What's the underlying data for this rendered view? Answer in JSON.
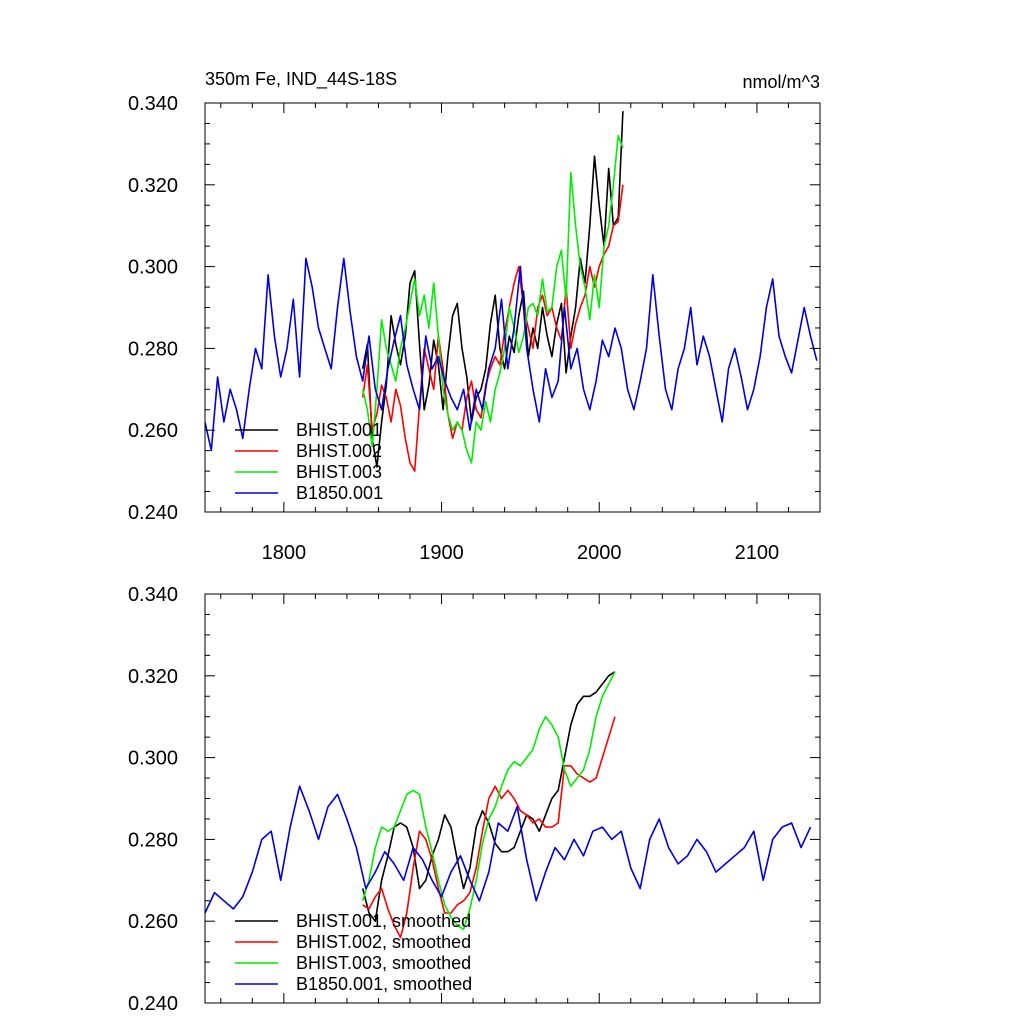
{
  "colors": {
    "BHIST.001": "#000000",
    "BHIST.002": "#ff0000",
    "BHIST.003": "#00ee00",
    "B1850.001": "#0000dd"
  },
  "chart_data": [
    {
      "type": "line",
      "title": "350m Fe, IND_44S-18S",
      "units": "nmol/m^3",
      "xlabel": "",
      "ylabel": "",
      "xlim": [
        1750,
        2140
      ],
      "ylim": [
        0.24,
        0.34
      ],
      "xticks": [
        1800,
        1900,
        2000,
        2100
      ],
      "xtick_labels": [
        "1800",
        "1900",
        "2000",
        "2100"
      ],
      "yticks": [
        0.24,
        0.26,
        0.28,
        0.3,
        0.32,
        0.34
      ],
      "ytick_labels": [
        "0.240",
        "0.260",
        "0.280",
        "0.300",
        "0.320",
        "0.340"
      ],
      "legend_position": "bottom-left",
      "series": [
        {
          "name": "BHIST.001",
          "color": "#000000",
          "x": [
            1850,
            1853,
            1856,
            1859,
            1862,
            1865,
            1868,
            1871,
            1874,
            1877,
            1880,
            1883,
            1886,
            1889,
            1892,
            1895,
            1898,
            1901,
            1904,
            1907,
            1910,
            1913,
            1916,
            1919,
            1922,
            1925,
            1928,
            1931,
            1934,
            1937,
            1940,
            1943,
            1946,
            1949,
            1952,
            1955,
            1958,
            1961,
            1964,
            1967,
            1970,
            1973,
            1976,
            1979,
            1982,
            1985,
            1988,
            1991,
            1994,
            1997,
            2000,
            2003,
            2006,
            2009,
            2012,
            2015
          ],
          "y": [
            0.275,
            0.281,
            0.258,
            0.251,
            0.262,
            0.271,
            0.288,
            0.281,
            0.276,
            0.283,
            0.296,
            0.299,
            0.281,
            0.265,
            0.271,
            0.282,
            0.276,
            0.265,
            0.278,
            0.288,
            0.291,
            0.28,
            0.273,
            0.262,
            0.268,
            0.27,
            0.275,
            0.286,
            0.293,
            0.28,
            0.275,
            0.283,
            0.279,
            0.288,
            0.294,
            0.278,
            0.285,
            0.28,
            0.29,
            0.283,
            0.278,
            0.286,
            0.291,
            0.274,
            0.283,
            0.29,
            0.302,
            0.296,
            0.31,
            0.327,
            0.315,
            0.305,
            0.324,
            0.31,
            0.312,
            0.338
          ]
        },
        {
          "name": "BHIST.002",
          "color": "#ff0000",
          "x": [
            1850,
            1853,
            1856,
            1859,
            1862,
            1865,
            1868,
            1871,
            1874,
            1877,
            1880,
            1883,
            1886,
            1889,
            1892,
            1895,
            1898,
            1901,
            1904,
            1907,
            1910,
            1913,
            1916,
            1919,
            1922,
            1925,
            1928,
            1931,
            1934,
            1937,
            1940,
            1943,
            1946,
            1949,
            1952,
            1955,
            1958,
            1961,
            1964,
            1967,
            1970,
            1973,
            1976,
            1979,
            1982,
            1985,
            1988,
            1991,
            1994,
            1997,
            2000,
            2003,
            2006,
            2009,
            2012,
            2015
          ],
          "y": [
            0.268,
            0.276,
            0.26,
            0.264,
            0.271,
            0.268,
            0.262,
            0.27,
            0.266,
            0.258,
            0.252,
            0.25,
            0.266,
            0.28,
            0.275,
            0.27,
            0.283,
            0.275,
            0.264,
            0.258,
            0.262,
            0.26,
            0.268,
            0.272,
            0.265,
            0.263,
            0.271,
            0.275,
            0.278,
            0.276,
            0.284,
            0.29,
            0.296,
            0.3,
            0.29,
            0.285,
            0.28,
            0.29,
            0.293,
            0.288,
            0.29,
            0.285,
            0.282,
            0.295,
            0.28,
            0.286,
            0.29,
            0.293,
            0.3,
            0.295,
            0.3,
            0.303,
            0.305,
            0.31,
            0.311,
            0.32
          ]
        },
        {
          "name": "BHIST.003",
          "color": "#00ee00",
          "x": [
            1850,
            1853,
            1856,
            1859,
            1862,
            1865,
            1868,
            1871,
            1874,
            1877,
            1880,
            1883,
            1886,
            1889,
            1892,
            1895,
            1898,
            1901,
            1904,
            1907,
            1910,
            1913,
            1916,
            1919,
            1922,
            1925,
            1928,
            1931,
            1934,
            1937,
            1940,
            1943,
            1946,
            1949,
            1952,
            1955,
            1958,
            1961,
            1964,
            1967,
            1970,
            1973,
            1976,
            1979,
            1982,
            1985,
            1988,
            1991,
            1994,
            1997,
            2000,
            2003,
            2006,
            2009,
            2012,
            2015
          ],
          "y": [
            0.27,
            0.265,
            0.256,
            0.27,
            0.287,
            0.28,
            0.276,
            0.272,
            0.28,
            0.285,
            0.291,
            0.297,
            0.288,
            0.293,
            0.285,
            0.296,
            0.283,
            0.27,
            0.264,
            0.26,
            0.262,
            0.26,
            0.255,
            0.252,
            0.262,
            0.26,
            0.267,
            0.262,
            0.27,
            0.274,
            0.28,
            0.29,
            0.285,
            0.279,
            0.283,
            0.29,
            0.291,
            0.288,
            0.297,
            0.289,
            0.29,
            0.3,
            0.304,
            0.292,
            0.323,
            0.31,
            0.3,
            0.295,
            0.287,
            0.298,
            0.29,
            0.305,
            0.31,
            0.32,
            0.332,
            0.329
          ]
        },
        {
          "name": "B1850.001",
          "color": "#0000dd",
          "x": [
            1750,
            1754,
            1758,
            1762,
            1766,
            1770,
            1774,
            1778,
            1782,
            1786,
            1790,
            1794,
            1798,
            1802,
            1806,
            1810,
            1814,
            1818,
            1822,
            1826,
            1830,
            1834,
            1838,
            1842,
            1846,
            1850,
            1854,
            1858,
            1862,
            1866,
            1870,
            1874,
            1878,
            1882,
            1886,
            1890,
            1894,
            1898,
            1902,
            1906,
            1910,
            1914,
            1918,
            1922,
            1926,
            1930,
            1934,
            1938,
            1942,
            1946,
            1950,
            1954,
            1958,
            1962,
            1966,
            1970,
            1974,
            1978,
            1982,
            1986,
            1990,
            1994,
            1998,
            2002,
            2006,
            2010,
            2014,
            2018,
            2022,
            2026,
            2030,
            2034,
            2038,
            2042,
            2046,
            2050,
            2054,
            2058,
            2062,
            2066,
            2070,
            2074,
            2078,
            2082,
            2086,
            2090,
            2094,
            2098,
            2102,
            2106,
            2110,
            2114,
            2118,
            2122,
            2126,
            2130,
            2134,
            2138
          ],
          "y": [
            0.262,
            0.255,
            0.273,
            0.262,
            0.27,
            0.265,
            0.258,
            0.27,
            0.28,
            0.275,
            0.298,
            0.283,
            0.273,
            0.28,
            0.292,
            0.273,
            0.302,
            0.295,
            0.285,
            0.28,
            0.275,
            0.29,
            0.302,
            0.289,
            0.278,
            0.272,
            0.283,
            0.27,
            0.265,
            0.275,
            0.282,
            0.288,
            0.276,
            0.27,
            0.265,
            0.283,
            0.275,
            0.278,
            0.272,
            0.268,
            0.265,
            0.27,
            0.26,
            0.27,
            0.265,
            0.275,
            0.28,
            0.292,
            0.275,
            0.285,
            0.3,
            0.28,
            0.27,
            0.262,
            0.275,
            0.268,
            0.272,
            0.29,
            0.275,
            0.28,
            0.27,
            0.265,
            0.272,
            0.282,
            0.278,
            0.285,
            0.28,
            0.27,
            0.265,
            0.272,
            0.28,
            0.298,
            0.283,
            0.27,
            0.265,
            0.275,
            0.28,
            0.29,
            0.276,
            0.283,
            0.278,
            0.27,
            0.262,
            0.275,
            0.28,
            0.273,
            0.265,
            0.27,
            0.278,
            0.29,
            0.297,
            0.283,
            0.278,
            0.274,
            0.282,
            0.29,
            0.283,
            0.277
          ]
        }
      ]
    },
    {
      "type": "line",
      "title": "",
      "units": "",
      "xlabel": "",
      "ylabel": "",
      "xlim": [
        1750,
        2140
      ],
      "ylim": [
        0.24,
        0.34
      ],
      "xticks": [
        1800,
        1900,
        2000,
        2100
      ],
      "xtick_labels": [],
      "yticks": [
        0.24,
        0.26,
        0.28,
        0.3,
        0.32,
        0.34
      ],
      "ytick_labels": [
        "0.240",
        "0.260",
        "0.280",
        "0.300",
        "0.320",
        "0.340"
      ],
      "legend_position": "bottom-left",
      "series": [
        {
          "name": "BHIST.001, smoothed",
          "color": "#000000",
          "x": [
            1850,
            1854,
            1858,
            1862,
            1866,
            1870,
            1874,
            1878,
            1882,
            1886,
            1890,
            1894,
            1898,
            1902,
            1906,
            1910,
            1914,
            1918,
            1922,
            1926,
            1930,
            1934,
            1938,
            1942,
            1946,
            1950,
            1954,
            1958,
            1962,
            1966,
            1970,
            1974,
            1978,
            1982,
            1986,
            1990,
            1994,
            1998,
            2002,
            2006,
            2010
          ],
          "y": [
            0.268,
            0.262,
            0.26,
            0.27,
            0.276,
            0.283,
            0.284,
            0.283,
            0.278,
            0.268,
            0.27,
            0.276,
            0.28,
            0.286,
            0.283,
            0.275,
            0.268,
            0.273,
            0.283,
            0.287,
            0.284,
            0.279,
            0.277,
            0.277,
            0.278,
            0.282,
            0.286,
            0.285,
            0.282,
            0.286,
            0.29,
            0.292,
            0.3,
            0.308,
            0.313,
            0.315,
            0.315,
            0.316,
            0.318,
            0.32,
            0.321
          ]
        },
        {
          "name": "BHIST.002, smoothed",
          "color": "#ff0000",
          "x": [
            1850,
            1854,
            1858,
            1862,
            1866,
            1870,
            1874,
            1878,
            1882,
            1886,
            1890,
            1894,
            1898,
            1902,
            1906,
            1910,
            1914,
            1918,
            1922,
            1926,
            1930,
            1934,
            1938,
            1942,
            1946,
            1950,
            1954,
            1958,
            1962,
            1966,
            1970,
            1974,
            1978,
            1982,
            1986,
            1990,
            1994,
            1998,
            2002,
            2006,
            2010
          ],
          "y": [
            0.264,
            0.263,
            0.266,
            0.268,
            0.263,
            0.259,
            0.256,
            0.262,
            0.273,
            0.282,
            0.28,
            0.275,
            0.268,
            0.262,
            0.262,
            0.264,
            0.265,
            0.267,
            0.273,
            0.282,
            0.29,
            0.293,
            0.29,
            0.292,
            0.29,
            0.287,
            0.286,
            0.284,
            0.285,
            0.283,
            0.283,
            0.284,
            0.298,
            0.298,
            0.296,
            0.295,
            0.294,
            0.295,
            0.3,
            0.305,
            0.31
          ]
        },
        {
          "name": "BHIST.003, smoothed",
          "color": "#00ee00",
          "x": [
            1850,
            1854,
            1858,
            1862,
            1866,
            1870,
            1874,
            1878,
            1882,
            1886,
            1890,
            1894,
            1898,
            1902,
            1906,
            1910,
            1914,
            1918,
            1922,
            1926,
            1930,
            1934,
            1938,
            1942,
            1946,
            1950,
            1954,
            1958,
            1962,
            1966,
            1970,
            1974,
            1978,
            1982,
            1986,
            1990,
            1994,
            1998,
            2002,
            2006,
            2010
          ],
          "y": [
            0.265,
            0.27,
            0.278,
            0.283,
            0.282,
            0.283,
            0.287,
            0.291,
            0.292,
            0.291,
            0.283,
            0.277,
            0.27,
            0.264,
            0.261,
            0.259,
            0.258,
            0.263,
            0.27,
            0.279,
            0.285,
            0.288,
            0.293,
            0.297,
            0.299,
            0.298,
            0.3,
            0.302,
            0.307,
            0.31,
            0.308,
            0.305,
            0.297,
            0.293,
            0.295,
            0.297,
            0.302,
            0.31,
            0.315,
            0.318,
            0.321
          ]
        },
        {
          "name": "B1850.001, smoothed",
          "color": "#0000dd",
          "x": [
            1750,
            1756,
            1762,
            1768,
            1774,
            1780,
            1786,
            1792,
            1798,
            1804,
            1810,
            1816,
            1822,
            1828,
            1834,
            1840,
            1846,
            1852,
            1858,
            1864,
            1870,
            1876,
            1882,
            1888,
            1894,
            1900,
            1906,
            1912,
            1918,
            1924,
            1930,
            1936,
            1942,
            1948,
            1954,
            1960,
            1966,
            1972,
            1978,
            1984,
            1990,
            1996,
            2002,
            2008,
            2014,
            2020,
            2026,
            2032,
            2038,
            2044,
            2050,
            2056,
            2062,
            2068,
            2074,
            2080,
            2086,
            2092,
            2098,
            2104,
            2110,
            2116,
            2122,
            2128,
            2134
          ],
          "y": [
            0.262,
            0.267,
            0.265,
            0.263,
            0.266,
            0.272,
            0.28,
            0.282,
            0.27,
            0.283,
            0.293,
            0.287,
            0.28,
            0.288,
            0.291,
            0.285,
            0.278,
            0.268,
            0.272,
            0.277,
            0.274,
            0.27,
            0.278,
            0.275,
            0.27,
            0.266,
            0.272,
            0.276,
            0.27,
            0.265,
            0.272,
            0.284,
            0.282,
            0.288,
            0.275,
            0.265,
            0.272,
            0.278,
            0.275,
            0.28,
            0.276,
            0.282,
            0.283,
            0.28,
            0.282,
            0.273,
            0.268,
            0.28,
            0.285,
            0.278,
            0.274,
            0.276,
            0.28,
            0.277,
            0.272,
            0.274,
            0.276,
            0.278,
            0.282,
            0.27,
            0.28,
            0.283,
            0.284,
            0.278,
            0.283
          ]
        }
      ]
    }
  ]
}
